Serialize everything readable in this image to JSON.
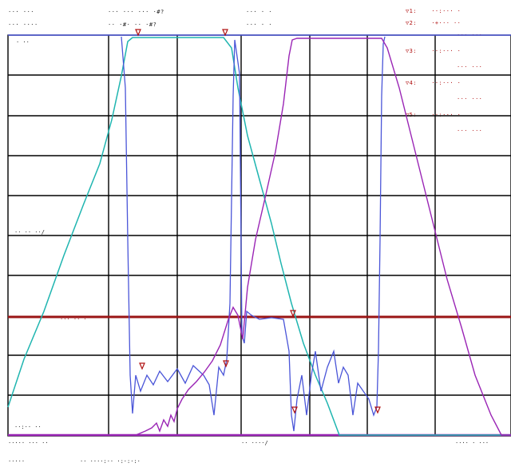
{
  "header": {
    "row1": [
      "··· ···",
      "··· ··· ··· ·#?",
      "··· · ·"
    ],
    "row2": [
      "··· ····",
      "·· ·#· ·· ·#?",
      "··· · ·"
    ]
  },
  "marker_table": [
    {
      "id": "▽1:",
      "value": "··:··· ·",
      "sub": ""
    },
    {
      "id": "▽2:",
      "value": "·+··· ··",
      "sub": "··· ···"
    },
    {
      "id": "▽3:",
      "value": "··:··· ·",
      "sub": "··· ···"
    },
    {
      "id": "▽4:",
      "value": "··:··· ·",
      "sub": "··· ···"
    },
    {
      "id": "▽5:",
      "value": "··:··· ·",
      "sub": "··· ···"
    }
  ],
  "plot": {
    "ref_label": "· ··",
    "mid_label": "·· ·· ··/",
    "ref_line_label": "··· ·· ·",
    "bottom_label": "··:·· ··"
  },
  "footer": {
    "start": "·····  ··· ··",
    "center": "·· ····/",
    "stop": "···· · ···",
    "status_left": "·····",
    "status_right": "·· ····:·· ·:·:·:·"
  },
  "colors": {
    "trace_cyan": "#1fb5b0",
    "trace_blue": "#4a55d8",
    "trace_magenta": "#9a25b5",
    "reference_line": "#9a1515",
    "grid": "#000000",
    "marker": "#b01010"
  }
}
